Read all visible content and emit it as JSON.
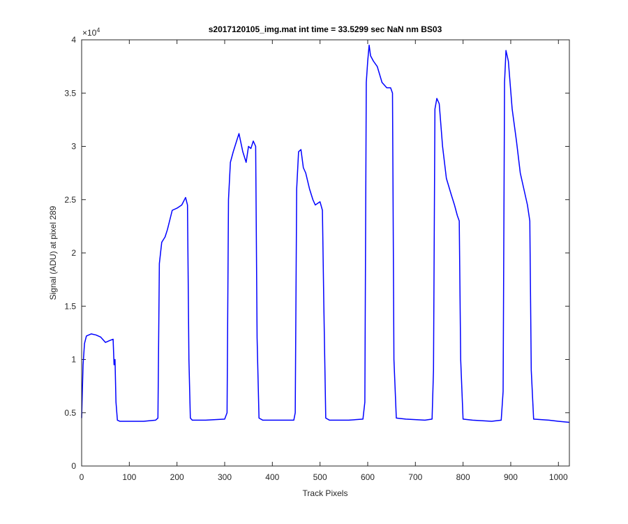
{
  "chart_data": {
    "type": "line",
    "title": "s2017120105_img.mat int time = 33.5299 sec  NaN nm BS03",
    "xlabel": "Track Pixels",
    "ylabel": "Signal (ADU) at pixel 289",
    "y_multiplier": {
      "base": "×10",
      "exponent": "4"
    },
    "color": "#0000ff",
    "xlim": [
      0,
      1023
    ],
    "xticks": [
      0,
      100,
      200,
      300,
      400,
      500,
      600,
      700,
      800,
      900,
      1000
    ],
    "ylim": [
      0,
      4
    ],
    "yticks": [
      0,
      0.5,
      1,
      1.5,
      2,
      2.5,
      3,
      3.5,
      4
    ],
    "x": [
      0,
      3,
      6,
      10,
      20,
      30,
      40,
      50,
      60,
      66,
      68,
      70,
      72,
      75,
      80,
      100,
      130,
      155,
      160,
      163,
      168,
      175,
      180,
      190,
      200,
      210,
      218,
      222,
      225,
      228,
      232,
      260,
      300,
      305,
      308,
      312,
      318,
      325,
      330,
      338,
      345,
      350,
      355,
      360,
      365,
      368,
      372,
      380,
      420,
      445,
      448,
      451,
      455,
      460,
      465,
      470,
      478,
      485,
      490,
      500,
      505,
      508,
      512,
      520,
      560,
      590,
      594,
      597,
      600,
      603,
      606,
      612,
      620,
      630,
      640,
      648,
      652,
      655,
      660,
      680,
      720,
      735,
      738,
      741,
      745,
      750,
      757,
      765,
      775,
      782,
      788,
      792,
      795,
      800,
      820,
      860,
      880,
      884,
      887,
      890,
      895,
      903,
      912,
      920,
      930,
      935,
      940,
      943,
      948,
      980,
      1000,
      1023
    ],
    "values": [
      0.45,
      0.95,
      1.15,
      1.22,
      1.24,
      1.23,
      1.21,
      1.16,
      1.18,
      1.19,
      0.95,
      1.0,
      0.6,
      0.43,
      0.42,
      0.42,
      0.42,
      0.43,
      0.45,
      1.9,
      2.1,
      2.15,
      2.22,
      2.4,
      2.42,
      2.45,
      2.52,
      2.45,
      1.0,
      0.45,
      0.43,
      0.43,
      0.44,
      0.5,
      2.5,
      2.85,
      2.95,
      3.05,
      3.12,
      2.95,
      2.85,
      3.0,
      2.98,
      3.05,
      3.0,
      1.2,
      0.45,
      0.43,
      0.43,
      0.43,
      0.5,
      2.6,
      2.95,
      2.97,
      2.8,
      2.75,
      2.6,
      2.5,
      2.45,
      2.48,
      2.4,
      1.5,
      0.45,
      0.43,
      0.43,
      0.44,
      0.6,
      3.6,
      3.8,
      3.95,
      3.85,
      3.8,
      3.75,
      3.6,
      3.55,
      3.55,
      3.5,
      1.0,
      0.45,
      0.44,
      0.43,
      0.44,
      0.9,
      3.35,
      3.45,
      3.4,
      3.0,
      2.7,
      2.55,
      2.45,
      2.35,
      2.3,
      1.0,
      0.44,
      0.43,
      0.42,
      0.43,
      0.7,
      3.6,
      3.9,
      3.8,
      3.35,
      3.05,
      2.75,
      2.55,
      2.45,
      2.3,
      0.9,
      0.44,
      0.43,
      0.42,
      0.41
    ]
  }
}
